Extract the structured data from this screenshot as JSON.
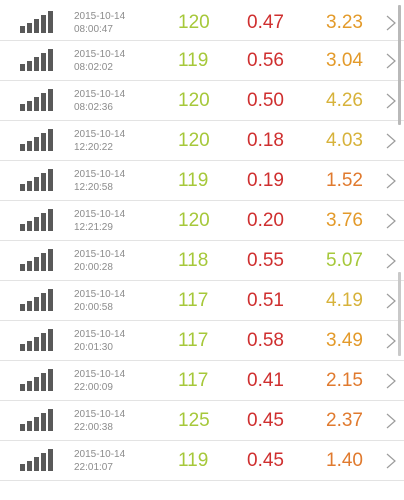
{
  "rows": [
    {
      "date": "2015-10-14",
      "time": "08:00:47",
      "v1": "120",
      "v2": "0.47",
      "v3": "3.23"
    },
    {
      "date": "2015-10-14",
      "time": "08:02:02",
      "v1": "119",
      "v2": "0.56",
      "v3": "3.04"
    },
    {
      "date": "2015-10-14",
      "time": "08:02:36",
      "v1": "120",
      "v2": "0.50",
      "v3": "4.26"
    },
    {
      "date": "2015-10-14",
      "time": "12:20:22",
      "v1": "120",
      "v2": "0.18",
      "v3": "4.03"
    },
    {
      "date": "2015-10-14",
      "time": "12:20:58",
      "v1": "119",
      "v2": "0.19",
      "v3": "1.52"
    },
    {
      "date": "2015-10-14",
      "time": "12:21:29",
      "v1": "120",
      "v2": "0.20",
      "v3": "3.76"
    },
    {
      "date": "2015-10-14",
      "time": "20:00:28",
      "v1": "118",
      "v2": "0.55",
      "v3": "5.07"
    },
    {
      "date": "2015-10-14",
      "time": "20:00:58",
      "v1": "117",
      "v2": "0.51",
      "v3": "4.19"
    },
    {
      "date": "2015-10-14",
      "time": "20:01:30",
      "v1": "117",
      "v2": "0.58",
      "v3": "3.49"
    },
    {
      "date": "2015-10-14",
      "time": "22:00:09",
      "v1": "117",
      "v2": "0.41",
      "v3": "2.15"
    },
    {
      "date": "2015-10-14",
      "time": "22:00:38",
      "v1": "125",
      "v2": "0.45",
      "v3": "2.37"
    },
    {
      "date": "2015-10-14",
      "time": "22:01:07",
      "v1": "119",
      "v2": "0.45",
      "v3": "1.40"
    }
  ],
  "colors": {
    "v1": "#a6c83a",
    "v2": "#cf2f2f",
    "v3": [
      "#e39a2a",
      "#e39a2a",
      "#d7b23a",
      "#d7b23a",
      "#e07a2e",
      "#e39a2a",
      "#a6c83a",
      "#d7b23a",
      "#e39a2a",
      "#e07a2e",
      "#e07a2e",
      "#e07a2e"
    ]
  },
  "icons": {
    "signal": "signal-bars-icon",
    "chevron": "chevron-right-icon"
  }
}
